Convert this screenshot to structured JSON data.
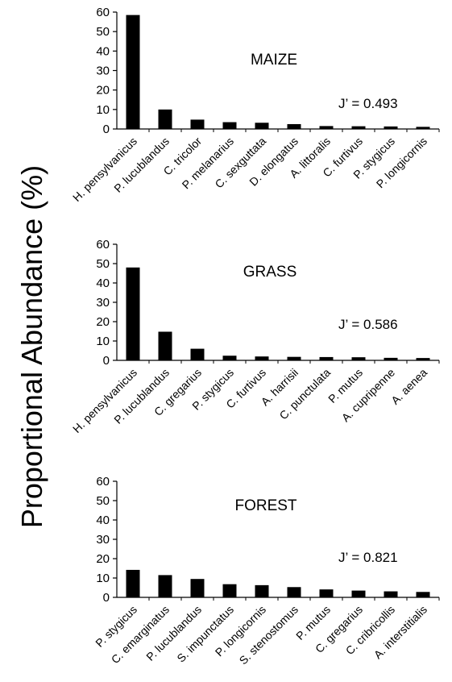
{
  "chart_data": {
    "ylabel": "Proportional Abundance (%)",
    "panels": [
      {
        "type": "bar",
        "title": "MAIZE",
        "annotation": "J’ = 0.493",
        "ylim": [
          0,
          60
        ],
        "yticks": [
          0,
          10,
          20,
          30,
          40,
          50,
          60
        ],
        "categories": [
          "H. pensylvanicus",
          "P. lucublandus",
          "C. tricolor",
          "P. melanarius",
          "C. sexguttata",
          "D. elongatus",
          "A. littoralis",
          "C. furtivus",
          "P. stygicus",
          "P. longicornis"
        ],
        "values": [
          58.5,
          10,
          4.8,
          3.5,
          3.2,
          2.5,
          1.5,
          1.4,
          1.3,
          1.1
        ]
      },
      {
        "type": "bar",
        "title": "GRASS",
        "annotation": "J’ = 0.586",
        "ylim": [
          0,
          60
        ],
        "yticks": [
          0,
          10,
          20,
          30,
          40,
          50,
          60
        ],
        "categories": [
          "H. pensylvanicus",
          "P. lucublandus",
          "C. gregarius",
          "P. stygicus",
          "C. furtivus",
          "A. harrisii",
          "C. punctulata",
          "P. mutus",
          "A. cupripenne",
          "A. aenea"
        ],
        "values": [
          48,
          14.8,
          6,
          2.4,
          2,
          1.8,
          1.7,
          1.6,
          1.3,
          1.2
        ]
      },
      {
        "type": "bar",
        "title": "FOREST",
        "annotation": "J’ = 0.821",
        "ylim": [
          0,
          60
        ],
        "yticks": [
          0,
          10,
          20,
          30,
          40,
          50,
          60
        ],
        "categories": [
          "P. stygicus",
          "C. emarginatus",
          "P. lucublandus",
          "S. impunctatus",
          "P. longicornis",
          "S. stenostomus",
          "P. mutus",
          "C. gregarius",
          "C. cribricollis",
          "A. interstitialis"
        ],
        "values": [
          14.2,
          11.5,
          9.5,
          6.8,
          6.3,
          5.3,
          4.1,
          3.5,
          3.1,
          2.8
        ]
      }
    ]
  }
}
